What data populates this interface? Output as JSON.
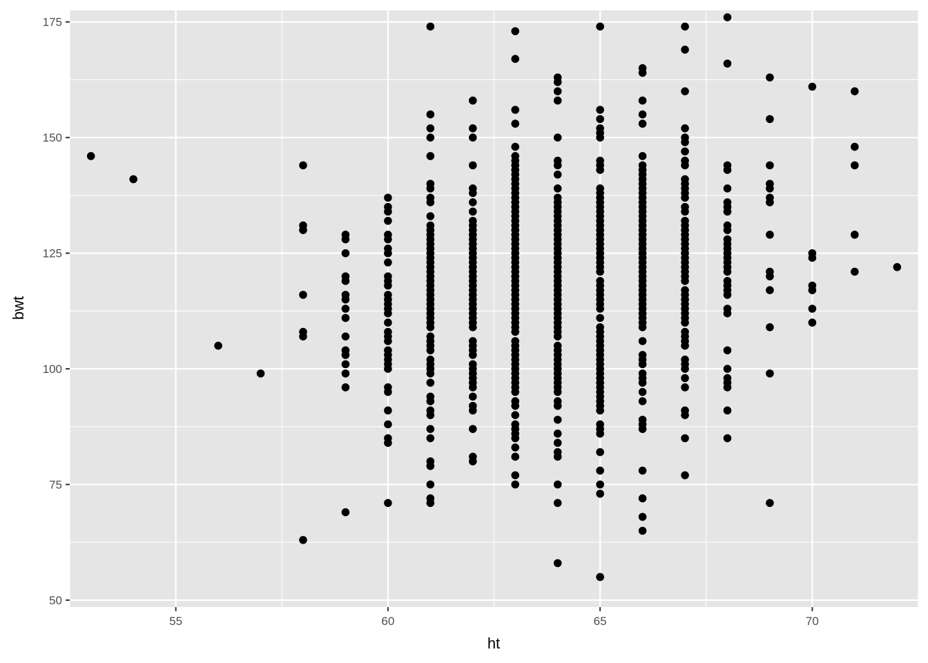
{
  "chart_data": {
    "type": "scatter",
    "title": "",
    "xlabel": "ht",
    "ylabel": "bwt",
    "xlim": [
      52.5,
      72.5
    ],
    "ylim": [
      48.5,
      177.5
    ],
    "x_ticks": [
      55,
      60,
      65,
      70
    ],
    "y_ticks": [
      50,
      75,
      100,
      125,
      150,
      175
    ],
    "x_tick_labels": [
      "55",
      "60",
      "65",
      "70"
    ],
    "y_tick_labels": [
      "50",
      "75",
      "100",
      "125",
      "150",
      "175"
    ],
    "grid": true,
    "legend": "none",
    "colors": {
      "panel": "#e5e5e5",
      "grid": "#ffffff",
      "point": "#000000",
      "tick_text": "#4d4d4d"
    },
    "points_by_x": [
      {
        "x": 53,
        "y": [
          146
        ]
      },
      {
        "x": 54,
        "y": [
          141
        ]
      },
      {
        "x": 56,
        "y": [
          105
        ]
      },
      {
        "x": 57,
        "y": [
          99
        ]
      },
      {
        "x": 58,
        "y": [
          144,
          131,
          130,
          116,
          108,
          107,
          63
        ]
      },
      {
        "x": 59,
        "y": [
          129,
          128,
          125,
          120,
          119,
          116,
          115,
          113,
          111,
          107,
          104,
          103,
          101,
          99,
          96,
          69
        ]
      },
      {
        "x": 60,
        "y": [
          137,
          135,
          134,
          132,
          129,
          128,
          126,
          125,
          123,
          120,
          119,
          118,
          116,
          115,
          114,
          113,
          112,
          110,
          108,
          107,
          106,
          104,
          103,
          102,
          101,
          100,
          96,
          95,
          91,
          88,
          85,
          84,
          71
        ]
      },
      {
        "x": 61,
        "y": [
          174,
          155,
          152,
          150,
          146,
          140,
          139,
          137,
          136,
          133,
          131,
          130,
          129,
          128,
          127,
          126,
          125,
          124,
          123,
          122,
          121,
          120,
          119,
          118,
          117,
          116,
          115,
          114,
          113,
          112,
          111,
          110,
          109,
          107,
          106,
          105,
          104,
          102,
          101,
          100,
          99,
          97,
          94,
          93,
          91,
          90,
          87,
          85,
          80,
          79,
          75,
          72,
          71
        ]
      },
      {
        "x": 62,
        "y": [
          158,
          152,
          150,
          144,
          139,
          138,
          136,
          134,
          132,
          131,
          130,
          129,
          128,
          127,
          126,
          125,
          124,
          123,
          122,
          121,
          120,
          119,
          118,
          117,
          116,
          115,
          114,
          113,
          112,
          111,
          110,
          109,
          106,
          105,
          104,
          103,
          101,
          100,
          99,
          98,
          97,
          96,
          94,
          92,
          91,
          87,
          81,
          80
        ]
      },
      {
        "x": 63,
        "y": [
          173,
          167,
          156,
          153,
          148,
          146,
          145,
          144,
          143,
          142,
          141,
          140,
          139,
          138,
          137,
          136,
          135,
          134,
          133,
          132,
          131,
          130,
          129,
          128,
          127,
          126,
          125,
          124,
          123,
          122,
          121,
          120,
          119,
          118,
          117,
          116,
          115,
          114,
          113,
          112,
          111,
          110,
          109,
          108,
          106,
          105,
          104,
          103,
          102,
          101,
          100,
          99,
          98,
          97,
          96,
          95,
          93,
          92,
          90,
          88,
          87,
          86,
          85,
          83,
          81,
          77,
          75
        ]
      },
      {
        "x": 64,
        "y": [
          163,
          162,
          160,
          158,
          150,
          145,
          144,
          142,
          139,
          137,
          136,
          135,
          134,
          133,
          132,
          131,
          130,
          129,
          128,
          127,
          126,
          125,
          124,
          123,
          122,
          121,
          120,
          119,
          118,
          117,
          116,
          115,
          114,
          113,
          112,
          111,
          110,
          109,
          108,
          107,
          105,
          104,
          103,
          102,
          101,
          100,
          99,
          98,
          97,
          96,
          95,
          93,
          92,
          89,
          86,
          84,
          82,
          81,
          75,
          71,
          58
        ]
      },
      {
        "x": 65,
        "y": [
          174,
          156,
          154,
          152,
          151,
          150,
          145,
          144,
          143,
          139,
          138,
          137,
          136,
          135,
          134,
          133,
          132,
          131,
          130,
          129,
          128,
          127,
          126,
          125,
          124,
          123,
          122,
          121,
          119,
          118,
          117,
          116,
          115,
          114,
          113,
          111,
          109,
          108,
          107,
          106,
          105,
          104,
          103,
          102,
          101,
          100,
          99,
          98,
          97,
          96,
          95,
          94,
          93,
          92,
          91,
          88,
          87,
          86,
          82,
          78,
          75,
          73,
          55
        ]
      },
      {
        "x": 66,
        "y": [
          165,
          164,
          158,
          155,
          153,
          146,
          144,
          143,
          142,
          141,
          140,
          139,
          138,
          137,
          136,
          135,
          134,
          133,
          132,
          131,
          130,
          129,
          128,
          127,
          126,
          125,
          124,
          123,
          122,
          121,
          120,
          119,
          118,
          117,
          116,
          115,
          114,
          113,
          112,
          111,
          110,
          109,
          106,
          103,
          102,
          101,
          99,
          98,
          97,
          95,
          93,
          89,
          88,
          87,
          78,
          72,
          68,
          65
        ]
      },
      {
        "x": 67,
        "y": [
          174,
          169,
          160,
          152,
          150,
          149,
          147,
          145,
          144,
          141,
          140,
          139,
          138,
          137,
          135,
          134,
          132,
          131,
          130,
          129,
          128,
          127,
          126,
          125,
          124,
          123,
          122,
          121,
          120,
          119,
          117,
          116,
          115,
          114,
          113,
          112,
          111,
          110,
          108,
          107,
          106,
          105,
          102,
          101,
          100,
          98,
          96,
          91,
          90,
          85,
          77
        ]
      },
      {
        "x": 68,
        "y": [
          176,
          166,
          144,
          143,
          139,
          136,
          135,
          134,
          131,
          130,
          128,
          127,
          126,
          125,
          124,
          123,
          122,
          121,
          119,
          118,
          117,
          116,
          113,
          112,
          104,
          100,
          98,
          97,
          96,
          91,
          85
        ]
      },
      {
        "x": 69,
        "y": [
          163,
          154,
          144,
          140,
          139,
          137,
          136,
          129,
          121,
          120,
          117,
          109,
          99,
          71
        ]
      },
      {
        "x": 70,
        "y": [
          161,
          125,
          124,
          118,
          117,
          113,
          110
        ]
      },
      {
        "x": 71,
        "y": [
          160,
          148,
          144,
          129,
          121
        ]
      },
      {
        "x": 72,
        "y": [
          122
        ]
      }
    ]
  }
}
